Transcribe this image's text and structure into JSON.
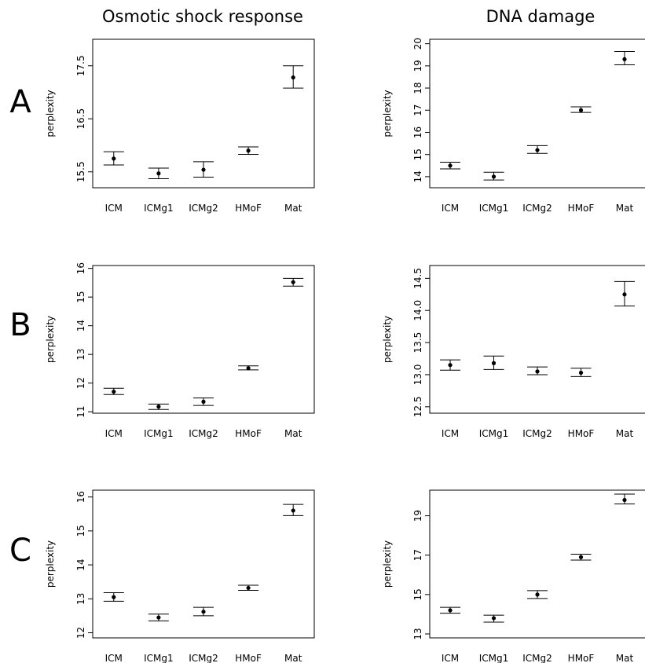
{
  "column_titles": [
    "Osmotic shock response",
    "DNA damage"
  ],
  "row_labels": [
    "A",
    "B",
    "C"
  ],
  "chart_data": [
    {
      "type": "scatter",
      "row": "A",
      "column": "Osmotic shock response",
      "title": "",
      "xlabel": "",
      "ylabel": "perplexity",
      "categories": [
        "ICM",
        "ICMg1",
        "ICMg2",
        "HMoF",
        "Mat"
      ],
      "values": [
        15.75,
        15.47,
        15.54,
        15.9,
        17.28
      ],
      "lower": [
        15.63,
        15.37,
        15.4,
        15.83,
        17.08
      ],
      "upper": [
        15.88,
        15.57,
        15.69,
        15.97,
        17.5
      ],
      "ylim": [
        15.2,
        18.0
      ],
      "yticks": [
        15.5,
        16.5,
        17.5
      ],
      "ytick_labels": [
        "15.5",
        "16.5",
        "17.5"
      ]
    },
    {
      "type": "scatter",
      "row": "A",
      "column": "DNA damage",
      "title": "",
      "xlabel": "",
      "ylabel": "perplexity",
      "categories": [
        "ICM",
        "ICMg1",
        "ICMg2",
        "HMoF",
        "Mat"
      ],
      "values": [
        14.5,
        14.0,
        15.2,
        17.0,
        19.3
      ],
      "lower": [
        14.35,
        13.85,
        15.05,
        16.9,
        19.05
      ],
      "upper": [
        14.65,
        14.2,
        15.4,
        17.15,
        19.65
      ],
      "ylim": [
        13.5,
        20.2
      ],
      "yticks": [
        14,
        15,
        16,
        17,
        18,
        19,
        20
      ],
      "ytick_labels": [
        "14",
        "15",
        "16",
        "17",
        "18",
        "19",
        "20"
      ]
    },
    {
      "type": "scatter",
      "row": "B",
      "column": "Osmotic shock response",
      "title": "",
      "xlabel": "",
      "ylabel": "perplexity",
      "categories": [
        "ICM",
        "ICMg1",
        "ICMg2",
        "HMoF",
        "Mat"
      ],
      "values": [
        11.7,
        11.18,
        11.35,
        12.52,
        15.52
      ],
      "lower": [
        11.6,
        11.08,
        11.22,
        12.46,
        15.38
      ],
      "upper": [
        11.82,
        11.27,
        11.48,
        12.6,
        15.65
      ],
      "ylim": [
        10.95,
        16.1
      ],
      "yticks": [
        11,
        12,
        13,
        14,
        15,
        16
      ],
      "ytick_labels": [
        "11",
        "12",
        "13",
        "14",
        "15",
        "16"
      ]
    },
    {
      "type": "scatter",
      "row": "B",
      "column": "DNA damage",
      "title": "",
      "xlabel": "",
      "ylabel": "perplexity",
      "categories": [
        "ICM",
        "ICMg1",
        "ICMg2",
        "HMoF",
        "Mat"
      ],
      "values": [
        13.15,
        13.18,
        13.05,
        13.03,
        14.25
      ],
      "lower": [
        13.07,
        13.08,
        13.0,
        12.97,
        14.07
      ],
      "upper": [
        13.23,
        13.29,
        13.12,
        13.1,
        14.45
      ],
      "ylim": [
        12.4,
        14.7
      ],
      "yticks": [
        12.5,
        13.0,
        13.5,
        14.0,
        14.5
      ],
      "ytick_labels": [
        "12.5",
        "13.0",
        "13.5",
        "14.0",
        "14.5"
      ]
    },
    {
      "type": "scatter",
      "row": "C",
      "column": "Osmotic shock response",
      "title": "",
      "xlabel": "",
      "ylabel": "perplexity",
      "categories": [
        "ICM",
        "ICMg1",
        "ICMg2",
        "HMoF",
        "Mat"
      ],
      "values": [
        13.05,
        12.45,
        12.62,
        13.32,
        15.6
      ],
      "lower": [
        12.93,
        12.35,
        12.5,
        13.25,
        15.45
      ],
      "upper": [
        13.18,
        12.55,
        12.75,
        13.4,
        15.78
      ],
      "ylim": [
        11.85,
        16.2
      ],
      "yticks": [
        12,
        13,
        14,
        15,
        16
      ],
      "ytick_labels": [
        "12",
        "13",
        "14",
        "15",
        "16"
      ]
    },
    {
      "type": "scatter",
      "row": "C",
      "column": "DNA damage",
      "title": "",
      "xlabel": "",
      "ylabel": "perplexity",
      "categories": [
        "ICM",
        "ICMg1",
        "ICMg2",
        "HMoF",
        "Mat"
      ],
      "values": [
        14.2,
        13.8,
        15.0,
        16.9,
        19.8
      ],
      "lower": [
        14.05,
        13.6,
        14.8,
        16.75,
        19.6
      ],
      "upper": [
        14.35,
        13.95,
        15.2,
        17.05,
        20.1
      ],
      "ylim": [
        12.8,
        20.3
      ],
      "yticks": [
        13,
        15,
        17,
        19
      ],
      "ytick_labels": [
        "13",
        "15",
        "17",
        "19"
      ]
    }
  ]
}
